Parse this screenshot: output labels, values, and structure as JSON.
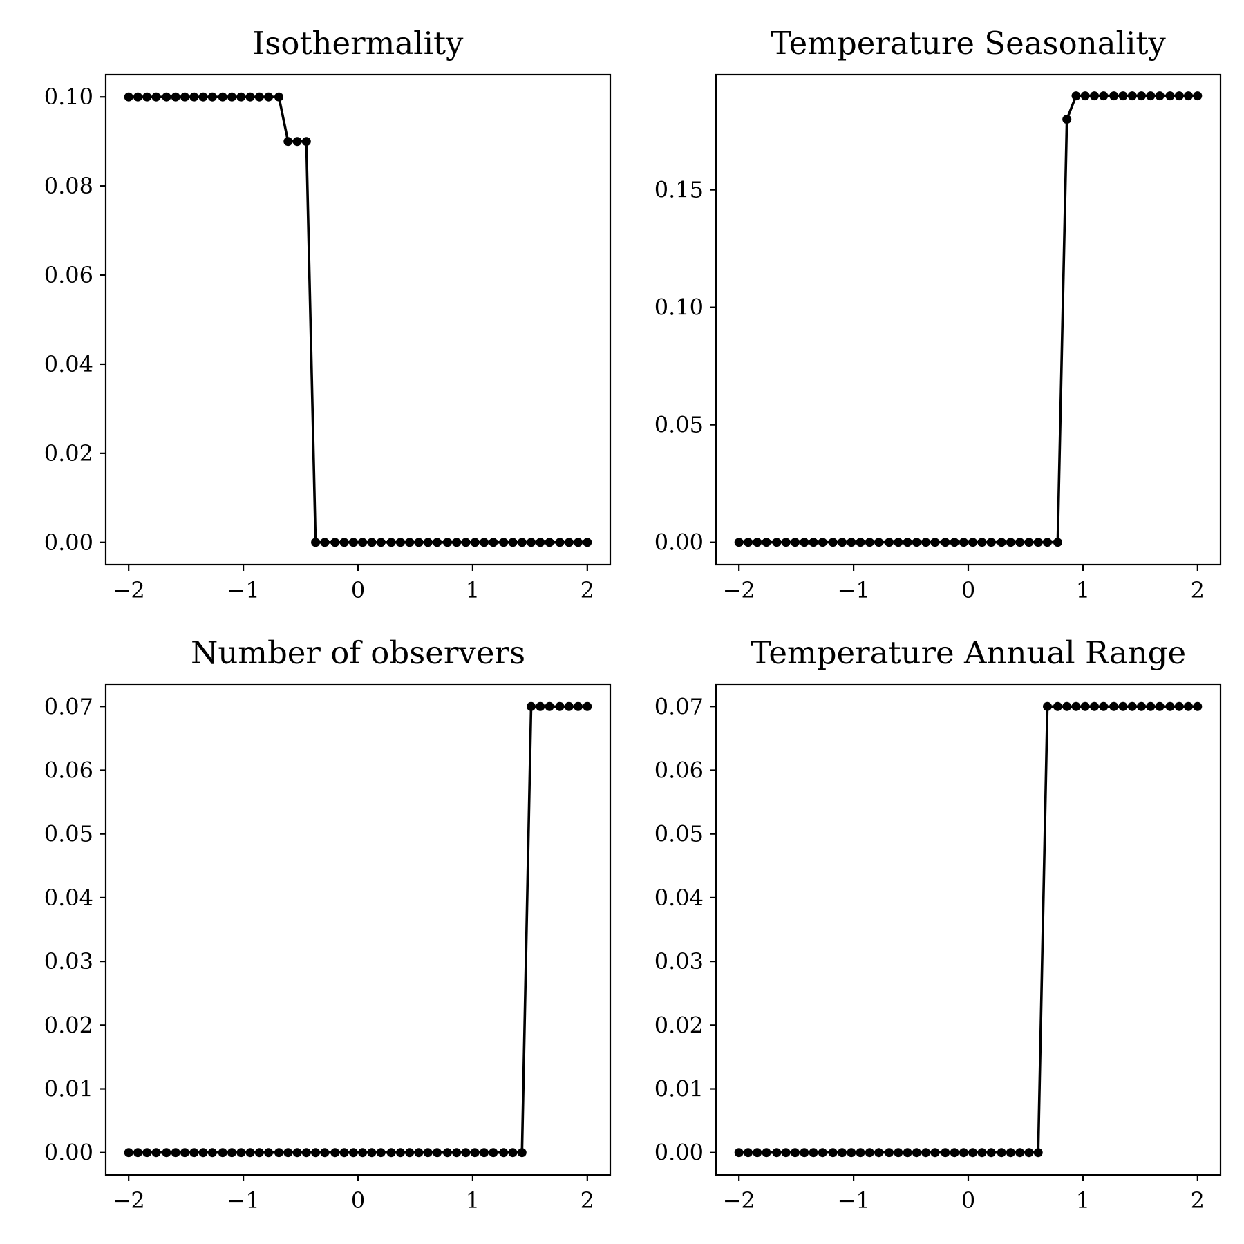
{
  "chart_data": [
    {
      "type": "line",
      "title": "Isothermality",
      "xlabel": "",
      "ylabel": "",
      "xlim": [
        -2.2,
        2.2
      ],
      "ylim": [
        -0.005,
        0.105
      ],
      "xticks": [
        -2,
        -1,
        0,
        1,
        2
      ],
      "xtick_labels": [
        "−2",
        "−1",
        "0",
        "1",
        "2"
      ],
      "yticks": [
        0.0,
        0.02,
        0.04,
        0.06,
        0.08,
        0.1
      ],
      "ytick_labels": [
        "0.00",
        "0.02",
        "0.04",
        "0.06",
        "0.08",
        "0.10"
      ],
      "grid": false,
      "series": [
        {
          "x": [
            -2.0,
            -1.92,
            -1.84,
            -1.76,
            -1.67,
            -1.59,
            -1.51,
            -1.43,
            -1.35,
            -1.27,
            -1.18,
            -1.1,
            -1.02,
            -0.94,
            -0.86,
            -0.78,
            -0.69,
            -0.61,
            -0.53,
            -0.45,
            -0.37,
            -0.29,
            -0.2,
            -0.12,
            -0.04,
            0.04,
            0.12,
            0.2,
            0.29,
            0.37,
            0.45,
            0.53,
            0.61,
            0.69,
            0.78,
            0.86,
            0.94,
            1.02,
            1.1,
            1.18,
            1.27,
            1.35,
            1.43,
            1.51,
            1.59,
            1.67,
            1.76,
            1.84,
            1.92,
            2.0
          ],
          "y": [
            0.1,
            0.1,
            0.1,
            0.1,
            0.1,
            0.1,
            0.1,
            0.1,
            0.1,
            0.1,
            0.1,
            0.1,
            0.1,
            0.1,
            0.1,
            0.1,
            0.1,
            0.09,
            0.09,
            0.09,
            0.0,
            0.0,
            0.0,
            0.0,
            0.0,
            0.0,
            0.0,
            0.0,
            0.0,
            0.0,
            0.0,
            0.0,
            0.0,
            0.0,
            0.0,
            0.0,
            0.0,
            0.0,
            0.0,
            0.0,
            0.0,
            0.0,
            0.0,
            0.0,
            0.0,
            0.0,
            0.0,
            0.0,
            0.0,
            0.0
          ]
        }
      ]
    },
    {
      "type": "line",
      "title": "Temperature Seasonality",
      "xlabel": "",
      "ylabel": "",
      "xlim": [
        -2.2,
        2.2
      ],
      "ylim": [
        -0.0095,
        0.199
      ],
      "xticks": [
        -2,
        -1,
        0,
        1,
        2
      ],
      "xtick_labels": [
        "−2",
        "−1",
        "0",
        "1",
        "2"
      ],
      "yticks": [
        0.0,
        0.05,
        0.1,
        0.15
      ],
      "ytick_labels": [
        "0.00",
        "0.05",
        "0.10",
        "0.15"
      ],
      "grid": false,
      "series": [
        {
          "x": [
            -2.0,
            -1.92,
            -1.84,
            -1.76,
            -1.67,
            -1.59,
            -1.51,
            -1.43,
            -1.35,
            -1.27,
            -1.18,
            -1.1,
            -1.02,
            -0.94,
            -0.86,
            -0.78,
            -0.69,
            -0.61,
            -0.53,
            -0.45,
            -0.37,
            -0.29,
            -0.2,
            -0.12,
            -0.04,
            0.04,
            0.12,
            0.2,
            0.29,
            0.37,
            0.45,
            0.53,
            0.61,
            0.69,
            0.78,
            0.86,
            0.94,
            1.02,
            1.1,
            1.18,
            1.27,
            1.35,
            1.43,
            1.51,
            1.59,
            1.67,
            1.76,
            1.84,
            1.92,
            2.0
          ],
          "y": [
            0.0,
            0.0,
            0.0,
            0.0,
            0.0,
            0.0,
            0.0,
            0.0,
            0.0,
            0.0,
            0.0,
            0.0,
            0.0,
            0.0,
            0.0,
            0.0,
            0.0,
            0.0,
            0.0,
            0.0,
            0.0,
            0.0,
            0.0,
            0.0,
            0.0,
            0.0,
            0.0,
            0.0,
            0.0,
            0.0,
            0.0,
            0.0,
            0.0,
            0.0,
            0.0,
            0.18,
            0.19,
            0.19,
            0.19,
            0.19,
            0.19,
            0.19,
            0.19,
            0.19,
            0.19,
            0.19,
            0.19,
            0.19,
            0.19,
            0.19
          ]
        }
      ]
    },
    {
      "type": "line",
      "title": "Number of observers",
      "xlabel": "",
      "ylabel": "",
      "xlim": [
        -2.2,
        2.2
      ],
      "ylim": [
        -0.0035,
        0.0735
      ],
      "xticks": [
        -2,
        -1,
        0,
        1,
        2
      ],
      "xtick_labels": [
        "−2",
        "−1",
        "0",
        "1",
        "2"
      ],
      "yticks": [
        0.0,
        0.01,
        0.02,
        0.03,
        0.04,
        0.05,
        0.06,
        0.07
      ],
      "ytick_labels": [
        "0.00",
        "0.01",
        "0.02",
        "0.03",
        "0.04",
        "0.05",
        "0.06",
        "0.07"
      ],
      "grid": false,
      "series": [
        {
          "x": [
            -2.0,
            -1.92,
            -1.84,
            -1.76,
            -1.67,
            -1.59,
            -1.51,
            -1.43,
            -1.35,
            -1.27,
            -1.18,
            -1.1,
            -1.02,
            -0.94,
            -0.86,
            -0.78,
            -0.69,
            -0.61,
            -0.53,
            -0.45,
            -0.37,
            -0.29,
            -0.2,
            -0.12,
            -0.04,
            0.04,
            0.12,
            0.2,
            0.29,
            0.37,
            0.45,
            0.53,
            0.61,
            0.69,
            0.78,
            0.86,
            0.94,
            1.02,
            1.1,
            1.18,
            1.27,
            1.35,
            1.43,
            1.51,
            1.59,
            1.67,
            1.76,
            1.84,
            1.92,
            2.0
          ],
          "y": [
            0.0,
            0.0,
            0.0,
            0.0,
            0.0,
            0.0,
            0.0,
            0.0,
            0.0,
            0.0,
            0.0,
            0.0,
            0.0,
            0.0,
            0.0,
            0.0,
            0.0,
            0.0,
            0.0,
            0.0,
            0.0,
            0.0,
            0.0,
            0.0,
            0.0,
            0.0,
            0.0,
            0.0,
            0.0,
            0.0,
            0.0,
            0.0,
            0.0,
            0.0,
            0.0,
            0.0,
            0.0,
            0.0,
            0.0,
            0.0,
            0.0,
            0.0,
            0.0,
            0.07,
            0.07,
            0.07,
            0.07,
            0.07,
            0.07,
            0.07
          ]
        }
      ]
    },
    {
      "type": "line",
      "title": "Temperature Annual Range",
      "xlabel": "",
      "ylabel": "",
      "xlim": [
        -2.2,
        2.2
      ],
      "ylim": [
        -0.0035,
        0.0735
      ],
      "xticks": [
        -2,
        -1,
        0,
        1,
        2
      ],
      "xtick_labels": [
        "−2",
        "−1",
        "0",
        "1",
        "2"
      ],
      "yticks": [
        0.0,
        0.01,
        0.02,
        0.03,
        0.04,
        0.05,
        0.06,
        0.07
      ],
      "ytick_labels": [
        "0.00",
        "0.01",
        "0.02",
        "0.03",
        "0.04",
        "0.05",
        "0.06",
        "0.07"
      ],
      "grid": false,
      "series": [
        {
          "x": [
            -2.0,
            -1.92,
            -1.84,
            -1.76,
            -1.67,
            -1.59,
            -1.51,
            -1.43,
            -1.35,
            -1.27,
            -1.18,
            -1.1,
            -1.02,
            -0.94,
            -0.86,
            -0.78,
            -0.69,
            -0.61,
            -0.53,
            -0.45,
            -0.37,
            -0.29,
            -0.2,
            -0.12,
            -0.04,
            0.04,
            0.12,
            0.2,
            0.29,
            0.37,
            0.45,
            0.53,
            0.61,
            0.69,
            0.78,
            0.86,
            0.94,
            1.02,
            1.1,
            1.18,
            1.27,
            1.35,
            1.43,
            1.51,
            1.59,
            1.67,
            1.76,
            1.84,
            1.92,
            2.0
          ],
          "y": [
            0.0,
            0.0,
            0.0,
            0.0,
            0.0,
            0.0,
            0.0,
            0.0,
            0.0,
            0.0,
            0.0,
            0.0,
            0.0,
            0.0,
            0.0,
            0.0,
            0.0,
            0.0,
            0.0,
            0.0,
            0.0,
            0.0,
            0.0,
            0.0,
            0.0,
            0.0,
            0.0,
            0.0,
            0.0,
            0.0,
            0.0,
            0.0,
            0.0,
            0.07,
            0.07,
            0.07,
            0.07,
            0.07,
            0.07,
            0.07,
            0.07,
            0.07,
            0.07,
            0.07,
            0.07,
            0.07,
            0.07,
            0.07,
            0.07,
            0.07
          ]
        }
      ]
    }
  ]
}
